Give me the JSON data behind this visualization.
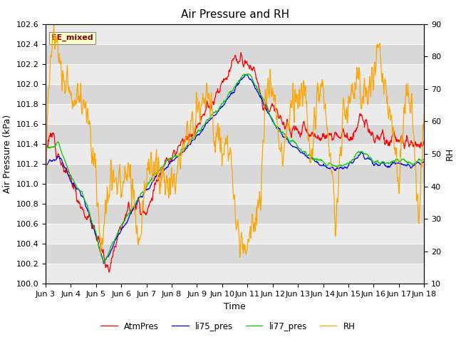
{
  "title": "Air Pressure and RH",
  "xlabel": "Time",
  "ylabel_left": "Air Pressure (kPa)",
  "ylabel_right": "RH",
  "ylim_left": [
    100.0,
    102.6
  ],
  "ylim_right": [
    10,
    90
  ],
  "yticks_left": [
    100.0,
    100.2,
    100.4,
    100.6,
    100.8,
    101.0,
    101.2,
    101.4,
    101.6,
    101.8,
    102.0,
    102.2,
    102.4,
    102.6
  ],
  "yticks_right": [
    10,
    20,
    30,
    40,
    50,
    60,
    70,
    80,
    90
  ],
  "xtick_labels": [
    "Jun 3",
    "Jun 4",
    "Jun 5",
    "Jun 6",
    "Jun 7",
    "Jun 8",
    "Jun 9",
    "Jun 10",
    "Jun 11",
    "Jun 12",
    "Jun 13",
    "Jun 14",
    "Jun 15",
    "Jun 16",
    "Jun 17",
    "Jun 18"
  ],
  "annotation_text": "EE_mixed",
  "annotation_box_color": "#ffffcc",
  "annotation_text_color": "#800000",
  "colors": {
    "AtmPres": "#ff0000",
    "li75_pres": "#0000ff",
    "li77_pres": "#00cc00",
    "RH": "#ffa500"
  },
  "legend_labels": [
    "AtmPres",
    "li75_pres",
    "li77_pres",
    "RH"
  ],
  "background_color": "#ffffff",
  "plot_bg_light": "#ebebeb",
  "plot_bg_dark": "#d8d8d8",
  "grid_color": "#ffffff",
  "title_fontsize": 11,
  "axis_fontsize": 9,
  "tick_fontsize": 8
}
